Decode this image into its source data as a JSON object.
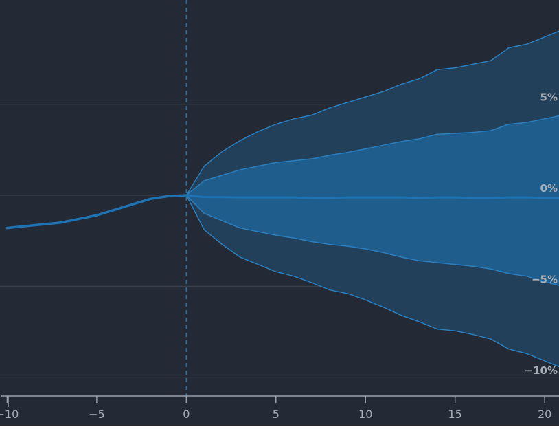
{
  "chart_data": {
    "type": "area",
    "title": "",
    "xlabel": "",
    "ylabel": "",
    "xlim": [
      -10.4,
      20.8
    ],
    "ylim": [
      -10.5,
      10.5
    ],
    "grid": true,
    "x_ticks": [
      {
        "value": -10,
        "label": "−10"
      },
      {
        "value": -5,
        "label": "−5"
      },
      {
        "value": 0,
        "label": "0"
      },
      {
        "value": 5,
        "label": "5"
      },
      {
        "value": 10,
        "label": "10"
      },
      {
        "value": 15,
        "label": "15"
      },
      {
        "value": 20,
        "label": "20"
      }
    ],
    "y_ticks": [
      {
        "value": 5,
        "label": "5%"
      },
      {
        "value": 0,
        "label": "0%"
      },
      {
        "value": -5,
        "label": "−5%"
      },
      {
        "value": -10,
        "label": "−10%"
      }
    ],
    "event_marker_x": 0,
    "history": {
      "x": [
        -10,
        -9,
        -8,
        -7,
        -6,
        -5,
        -4,
        -3,
        -2,
        -1,
        0
      ],
      "values": [
        -1.8,
        -1.7,
        -1.6,
        -1.5,
        -1.3,
        -1.1,
        -0.8,
        -0.5,
        -0.2,
        -0.05,
        0
      ]
    },
    "forecast": {
      "x": [
        0,
        1,
        2,
        3,
        4,
        5,
        6,
        7,
        8,
        9,
        10,
        11,
        12,
        13,
        14,
        15,
        16,
        17,
        18,
        19,
        20,
        21
      ],
      "upper_outer": [
        0,
        1.6,
        2.4,
        3.0,
        3.5,
        3.9,
        4.2,
        4.4,
        4.8,
        5.1,
        5.4,
        5.7,
        6.1,
        6.4,
        6.9,
        7.0,
        7.2,
        7.4,
        8.1,
        8.3,
        8.7,
        9.1
      ],
      "upper_inner": [
        0,
        0.8,
        1.1,
        1.4,
        1.6,
        1.8,
        1.9,
        2.0,
        2.2,
        2.35,
        2.55,
        2.75,
        2.95,
        3.1,
        3.35,
        3.4,
        3.45,
        3.55,
        3.9,
        4.0,
        4.2,
        4.4
      ],
      "median": [
        0,
        -0.1,
        -0.1,
        -0.12,
        -0.12,
        -0.12,
        -0.12,
        -0.15,
        -0.15,
        -0.12,
        -0.12,
        -0.12,
        -0.12,
        -0.15,
        -0.12,
        -0.12,
        -0.15,
        -0.15,
        -0.12,
        -0.12,
        -0.15,
        -0.15
      ],
      "lower_inner": [
        0,
        -1.0,
        -1.4,
        -1.8,
        -2.0,
        -2.2,
        -2.35,
        -2.55,
        -2.7,
        -2.8,
        -2.95,
        -3.15,
        -3.4,
        -3.6,
        -3.7,
        -3.8,
        -3.9,
        -4.05,
        -4.3,
        -4.45,
        -4.75,
        -5.0
      ],
      "lower_outer": [
        0,
        -1.9,
        -2.7,
        -3.4,
        -3.8,
        -4.2,
        -4.45,
        -4.8,
        -5.2,
        -5.4,
        -5.75,
        -6.15,
        -6.6,
        -6.95,
        -7.35,
        -7.45,
        -7.65,
        -7.9,
        -8.45,
        -8.7,
        -9.1,
        -9.5
      ]
    },
    "colors": {
      "background": "#232a35",
      "grid": "#3a414d",
      "axis": "#9aa0a8",
      "tick_text": "#a8aeb6",
      "history_line": "#1e73b4",
      "median_line": "#1e73b4",
      "band_line": "#2a7fc0",
      "inner_band": "#1f5d8c",
      "outer_band": "#23405a",
      "event_marker": "#1e73b4"
    }
  }
}
